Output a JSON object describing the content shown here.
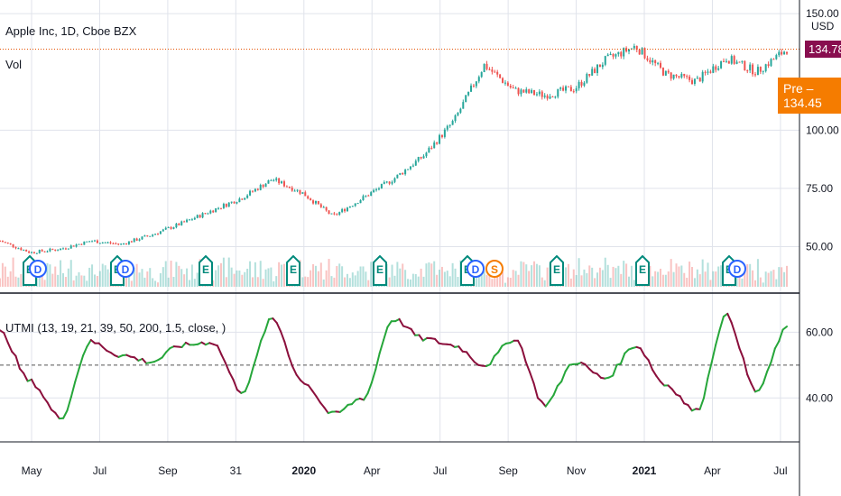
{
  "main_legend": {
    "title": "Apple Inc, 1D, Cboe BZX",
    "vol_label": "Vol"
  },
  "indicator_legend": {
    "label": "UTMI (13, 19, 21, 39, 50, 200, 1.5, close, )"
  },
  "price_axis": {
    "currency": "USD",
    "ticks": [
      "150.00",
      "100.00",
      "75.00",
      "50.00"
    ],
    "last_price": "134.78",
    "pre_price": "Pre – 134.45",
    "last_price_color": "#880e4f",
    "pre_price_color": "#f57c00"
  },
  "indicator_axis": {
    "ticks": [
      "60.00",
      "40.00"
    ],
    "midline": 50
  },
  "time_axis": {
    "labels": [
      "May",
      "Jul",
      "Sep",
      "31",
      "2020",
      "Apr",
      "Jul",
      "Sep",
      "Nov",
      "2021",
      "Apr",
      "Jul"
    ]
  },
  "events": [
    {
      "kind": "E",
      "label": "E",
      "color": "#00897b"
    },
    {
      "kind": "D",
      "label": "D",
      "color": "#2962ff"
    },
    {
      "kind": "S",
      "label": "S",
      "color": "#f57c00"
    }
  ],
  "colors": {
    "up": "#26a69a",
    "down": "#ef5350",
    "indicator_up": "#26a63a",
    "indicator_down": "#8b0f3c",
    "grid": "#e0e3eb",
    "last_line": "#e65100"
  },
  "chart_data": [
    {
      "type": "candlestick",
      "title": "Apple Inc, 1D, Cboe BZX",
      "ylabel": "USD",
      "ylim": [
        32,
        152
      ],
      "x": [
        "2019-04",
        "2019-05",
        "2019-06",
        "2019-07",
        "2019-08",
        "2019-09",
        "2019-10",
        "2019-11",
        "2019-12",
        "2020-01",
        "2020-02",
        "2020-03",
        "2020-04",
        "2020-05",
        "2020-06",
        "2020-07",
        "2020-08",
        "2020-09",
        "2020-10",
        "2020-11",
        "2020-12",
        "2021-01",
        "2021-02",
        "2021-03",
        "2021-04",
        "2021-05",
        "2021-06"
      ],
      "close": [
        52.5,
        47.5,
        49,
        52.5,
        51,
        55,
        60,
        65.5,
        71,
        79,
        73,
        63,
        71,
        79,
        89,
        104,
        128,
        117,
        115,
        118,
        130,
        136,
        124,
        121,
        131,
        125,
        134.78
      ]
    },
    {
      "type": "line",
      "title": "UTMI (13, 19, 21, 39, 50, 200, 1.5, close, )",
      "ylim": [
        28,
        70
      ],
      "x": [
        "2019-04",
        "2019-05",
        "2019-06",
        "2019-07",
        "2019-08",
        "2019-09",
        "2019-10",
        "2019-11",
        "2019-12",
        "2020-01",
        "2020-02",
        "2020-03",
        "2020-04",
        "2020-05",
        "2020-06",
        "2020-07",
        "2020-08",
        "2020-09",
        "2020-10",
        "2020-11",
        "2020-12",
        "2021-01",
        "2021-02",
        "2021-03",
        "2021-04",
        "2021-05",
        "2021-06"
      ],
      "values": [
        60,
        45,
        34,
        57,
        53,
        51,
        56,
        57,
        42,
        64,
        45,
        35,
        40,
        64,
        58,
        56,
        50,
        58,
        38,
        51,
        46,
        56,
        44,
        36,
        65,
        42,
        61
      ]
    }
  ]
}
